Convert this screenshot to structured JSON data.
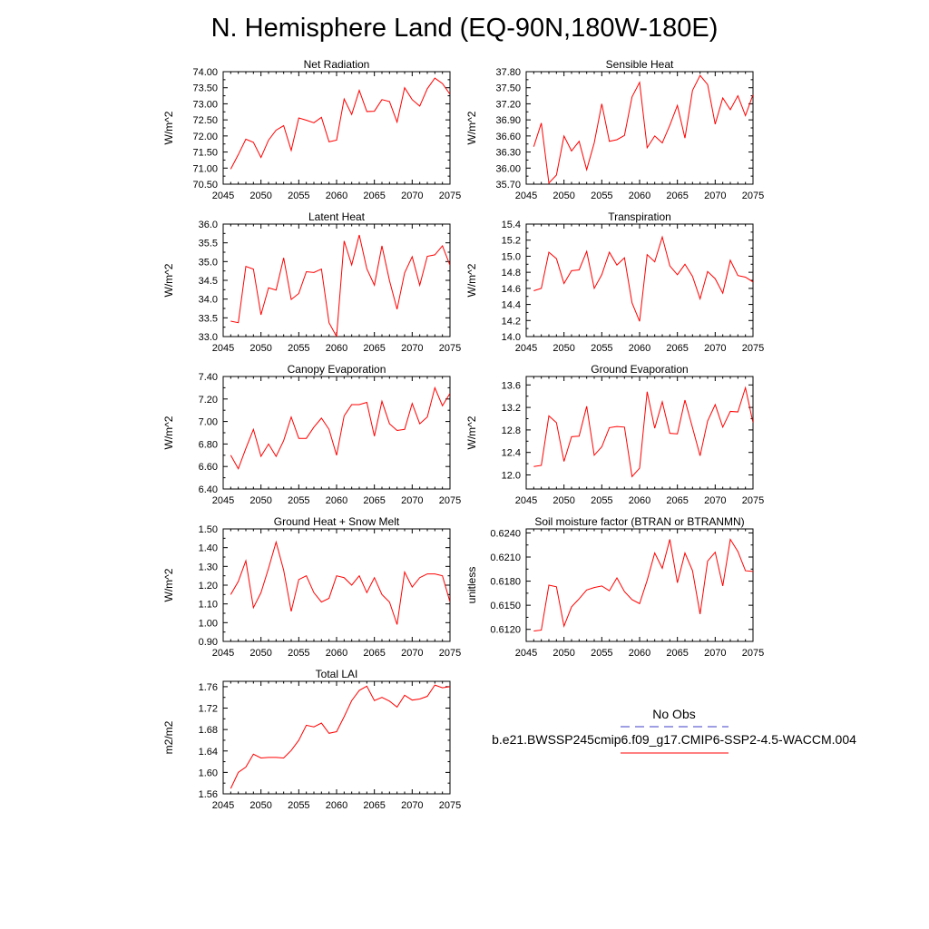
{
  "page": {
    "title": "N. Hemisphere Land (EQ-90N,180W-180E)",
    "legend": {
      "obs_label": "No Obs",
      "model_label": "b.e21.BWSSP245cmip6.f09_g17.CMIP6-SSP2-4.5-WACCM.004",
      "obs_color": "#3c3cc8",
      "model_color": "#ff0000"
    }
  },
  "colors": {
    "line": "#ff0000",
    "axis": "#000000",
    "background": "#ffffff"
  },
  "chart_data": [
    {
      "type": "line",
      "title": "Net Radiation",
      "ylabel": "W/m^2",
      "xlim": [
        2045,
        2075
      ],
      "ylim": [
        70.5,
        74.0
      ],
      "xticks": [
        2045,
        2050,
        2055,
        2060,
        2065,
        2070,
        2075
      ],
      "xtick_labels": [
        "2045",
        "2050",
        "2055",
        "2060",
        "2065",
        "2070",
        "2075"
      ],
      "yticks": [
        70.5,
        71.0,
        71.5,
        72.0,
        72.5,
        73.0,
        73.5,
        74.0
      ],
      "ytick_labels": [
        "70.50",
        "71.00",
        "71.50",
        "72.00",
        "72.50",
        "73.00",
        "73.50",
        "74.00"
      ],
      "x": [
        2046,
        2047,
        2048,
        2049,
        2050,
        2051,
        2052,
        2053,
        2054,
        2055,
        2056,
        2057,
        2058,
        2059,
        2060,
        2061,
        2062,
        2063,
        2064,
        2065,
        2066,
        2067,
        2068,
        2069,
        2070,
        2071,
        2072,
        2073,
        2074,
        2075
      ],
      "series": [
        {
          "values": [
            70.97,
            71.42,
            71.9,
            71.8,
            71.33,
            71.87,
            72.18,
            72.32,
            71.55,
            72.56,
            72.49,
            72.41,
            72.58,
            71.82,
            71.87,
            73.15,
            72.67,
            73.42,
            72.76,
            72.77,
            73.13,
            73.07,
            72.43,
            73.5,
            73.13,
            72.93,
            73.47,
            73.8,
            73.63,
            73.3
          ]
        }
      ]
    },
    {
      "type": "line",
      "title": "Sensible Heat",
      "ylabel": "W/m^2",
      "xlim": [
        2045,
        2075
      ],
      "ylim": [
        35.7,
        37.8
      ],
      "xticks": [
        2045,
        2050,
        2055,
        2060,
        2065,
        2070,
        2075
      ],
      "xtick_labels": [
        "2045",
        "2050",
        "2055",
        "2060",
        "2065",
        "2070",
        "2075"
      ],
      "yticks": [
        35.7,
        36.0,
        36.3,
        36.6,
        36.9,
        37.2,
        37.5,
        37.8
      ],
      "ytick_labels": [
        "35.70",
        "36.00",
        "36.30",
        "36.60",
        "36.90",
        "37.20",
        "37.50",
        "37.80"
      ],
      "x": [
        2046,
        2047,
        2048,
        2049,
        2050,
        2051,
        2052,
        2053,
        2054,
        2055,
        2056,
        2057,
        2058,
        2059,
        2060,
        2061,
        2062,
        2063,
        2064,
        2065,
        2066,
        2067,
        2068,
        2069,
        2070,
        2071,
        2072,
        2073,
        2074,
        2075
      ],
      "series": [
        {
          "values": [
            36.4,
            36.84,
            35.72,
            35.87,
            36.6,
            36.32,
            36.5,
            35.97,
            36.47,
            37.2,
            36.5,
            36.53,
            36.61,
            37.33,
            37.6,
            36.38,
            36.6,
            36.47,
            36.8,
            37.17,
            36.56,
            37.45,
            37.73,
            37.56,
            36.82,
            37.31,
            37.09,
            37.35,
            36.98,
            37.37
          ]
        }
      ]
    },
    {
      "type": "line",
      "title": "Latent Heat",
      "ylabel": "W/m^2",
      "xlim": [
        2045,
        2075
      ],
      "ylim": [
        33.0,
        36.0
      ],
      "xticks": [
        2045,
        2050,
        2055,
        2060,
        2065,
        2070,
        2075
      ],
      "xtick_labels": [
        "2045",
        "2050",
        "2055",
        "2060",
        "2065",
        "2070",
        "2075"
      ],
      "yticks": [
        33.0,
        33.5,
        34.0,
        34.5,
        35.0,
        35.5,
        36.0
      ],
      "ytick_labels": [
        "33.0",
        "33.5",
        "34.0",
        "34.5",
        "35.0",
        "35.5",
        "36.0"
      ],
      "x": [
        2046,
        2047,
        2048,
        2049,
        2050,
        2051,
        2052,
        2053,
        2054,
        2055,
        2056,
        2057,
        2058,
        2059,
        2060,
        2061,
        2062,
        2063,
        2064,
        2065,
        2066,
        2067,
        2068,
        2069,
        2070,
        2071,
        2072,
        2073,
        2074,
        2075
      ],
      "series": [
        {
          "values": [
            33.41,
            33.37,
            34.87,
            34.8,
            33.58,
            34.3,
            34.24,
            35.1,
            33.99,
            34.15,
            34.73,
            34.71,
            34.8,
            33.37,
            33.0,
            35.55,
            34.91,
            35.71,
            34.81,
            34.37,
            35.42,
            34.49,
            33.73,
            34.7,
            35.13,
            34.37,
            35.14,
            35.18,
            35.42,
            34.9
          ]
        }
      ]
    },
    {
      "type": "line",
      "title": "Transpiration",
      "ylabel": "W/m^2",
      "xlim": [
        2045,
        2075
      ],
      "ylim": [
        14.0,
        15.4
      ],
      "xticks": [
        2045,
        2050,
        2055,
        2060,
        2065,
        2070,
        2075
      ],
      "xtick_labels": [
        "2045",
        "2050",
        "2055",
        "2060",
        "2065",
        "2070",
        "2075"
      ],
      "yticks": [
        14.0,
        14.2,
        14.4,
        14.6,
        14.8,
        15.0,
        15.2,
        15.4
      ],
      "ytick_labels": [
        "14.0",
        "14.2",
        "14.4",
        "14.6",
        "14.8",
        "15.0",
        "15.2",
        "15.4"
      ],
      "x": [
        2046,
        2047,
        2048,
        2049,
        2050,
        2051,
        2052,
        2053,
        2054,
        2055,
        2056,
        2057,
        2058,
        2059,
        2060,
        2061,
        2062,
        2063,
        2064,
        2065,
        2066,
        2067,
        2068,
        2069,
        2070,
        2071,
        2072,
        2073,
        2074,
        2075
      ],
      "series": [
        {
          "values": [
            14.57,
            14.6,
            15.05,
            14.97,
            14.66,
            14.82,
            14.83,
            15.06,
            14.6,
            14.77,
            15.05,
            14.89,
            14.98,
            14.42,
            14.19,
            15.02,
            14.93,
            15.24,
            14.88,
            14.77,
            14.9,
            14.75,
            14.47,
            14.81,
            14.72,
            14.54,
            14.95,
            14.76,
            14.74,
            14.68
          ]
        }
      ]
    },
    {
      "type": "line",
      "title": "Canopy Evaporation",
      "ylabel": "W/m^2",
      "xlim": [
        2045,
        2075
      ],
      "ylim": [
        6.4,
        7.4
      ],
      "xticks": [
        2045,
        2050,
        2055,
        2060,
        2065,
        2070,
        2075
      ],
      "xtick_labels": [
        "2045",
        "2050",
        "2055",
        "2060",
        "2065",
        "2070",
        "2075"
      ],
      "yticks": [
        6.4,
        6.6,
        6.8,
        7.0,
        7.2,
        7.4
      ],
      "ytick_labels": [
        "6.40",
        "6.60",
        "6.80",
        "7.00",
        "7.20",
        "7.40"
      ],
      "x": [
        2046,
        2047,
        2048,
        2049,
        2050,
        2051,
        2052,
        2053,
        2054,
        2055,
        2056,
        2057,
        2058,
        2059,
        2060,
        2061,
        2062,
        2063,
        2064,
        2065,
        2066,
        2067,
        2068,
        2069,
        2070,
        2071,
        2072,
        2073,
        2074,
        2075
      ],
      "series": [
        {
          "values": [
            6.7,
            6.58,
            6.76,
            6.93,
            6.69,
            6.8,
            6.69,
            6.83,
            7.04,
            6.85,
            6.85,
            6.95,
            7.03,
            6.93,
            6.7,
            7.05,
            7.15,
            7.15,
            7.17,
            6.87,
            7.18,
            6.98,
            6.92,
            6.93,
            7.16,
            6.98,
            7.04,
            7.3,
            7.14,
            7.25
          ]
        }
      ]
    },
    {
      "type": "line",
      "title": "Ground Evaporation",
      "ylabel": "W/m^2",
      "xlim": [
        2045,
        2075
      ],
      "ylim": [
        11.75,
        13.75
      ],
      "xticks": [
        2045,
        2050,
        2055,
        2060,
        2065,
        2070,
        2075
      ],
      "xtick_labels": [
        "2045",
        "2050",
        "2055",
        "2060",
        "2065",
        "2070",
        "2075"
      ],
      "yticks": [
        12.0,
        12.4,
        12.8,
        13.2,
        13.6
      ],
      "ytick_labels": [
        "12.0",
        "12.4",
        "12.8",
        "13.2",
        "13.6"
      ],
      "x": [
        2046,
        2047,
        2048,
        2049,
        2050,
        2051,
        2052,
        2053,
        2054,
        2055,
        2056,
        2057,
        2058,
        2059,
        2060,
        2061,
        2062,
        2063,
        2064,
        2065,
        2066,
        2067,
        2068,
        2069,
        2070,
        2071,
        2072,
        2073,
        2074,
        2075
      ],
      "series": [
        {
          "values": [
            12.15,
            12.17,
            13.05,
            12.93,
            12.24,
            12.68,
            12.69,
            13.22,
            12.35,
            12.5,
            12.84,
            12.86,
            12.85,
            11.97,
            12.12,
            13.48,
            12.83,
            13.3,
            12.74,
            12.73,
            13.33,
            12.84,
            12.34,
            12.96,
            13.25,
            12.85,
            13.13,
            13.12,
            13.55,
            12.93
          ]
        }
      ]
    },
    {
      "type": "line",
      "title": "Ground Heat + Snow Melt",
      "ylabel": "W/m^2",
      "xlim": [
        2045,
        2075
      ],
      "ylim": [
        0.9,
        1.5
      ],
      "xticks": [
        2045,
        2050,
        2055,
        2060,
        2065,
        2070,
        2075
      ],
      "xtick_labels": [
        "2045",
        "2050",
        "2055",
        "2060",
        "2065",
        "2070",
        "2075"
      ],
      "yticks": [
        0.9,
        1.0,
        1.1,
        1.2,
        1.3,
        1.4,
        1.5
      ],
      "ytick_labels": [
        "0.90",
        "1.00",
        "1.10",
        "1.20",
        "1.30",
        "1.40",
        "1.50"
      ],
      "x": [
        2046,
        2047,
        2048,
        2049,
        2050,
        2051,
        2052,
        2053,
        2054,
        2055,
        2056,
        2057,
        2058,
        2059,
        2060,
        2061,
        2062,
        2063,
        2064,
        2065,
        2066,
        2067,
        2068,
        2069,
        2070,
        2071,
        2072,
        2073,
        2074,
        2075
      ],
      "series": [
        {
          "values": [
            1.15,
            1.22,
            1.33,
            1.08,
            1.16,
            1.29,
            1.43,
            1.28,
            1.06,
            1.23,
            1.25,
            1.16,
            1.11,
            1.13,
            1.25,
            1.24,
            1.2,
            1.25,
            1.16,
            1.24,
            1.15,
            1.11,
            0.99,
            1.27,
            1.19,
            1.24,
            1.26,
            1.26,
            1.25,
            1.11
          ]
        }
      ]
    },
    {
      "type": "line",
      "title": "Soil moisture factor (BTRAN or BTRANMN)",
      "ylabel": "unitless",
      "xlim": [
        2045,
        2075
      ],
      "ylim": [
        0.6105,
        0.6245
      ],
      "xticks": [
        2045,
        2050,
        2055,
        2060,
        2065,
        2070,
        2075
      ],
      "xtick_labels": [
        "2045",
        "2050",
        "2055",
        "2060",
        "2065",
        "2070",
        "2075"
      ],
      "yticks": [
        0.612,
        0.615,
        0.618,
        0.621,
        0.624
      ],
      "ytick_labels": [
        "0.6120",
        "0.6150",
        "0.6180",
        "0.6210",
        "0.6240"
      ],
      "x": [
        2046,
        2047,
        2048,
        2049,
        2050,
        2051,
        2052,
        2053,
        2054,
        2055,
        2056,
        2057,
        2058,
        2059,
        2060,
        2061,
        2062,
        2063,
        2064,
        2065,
        2066,
        2067,
        2068,
        2069,
        2070,
        2071,
        2072,
        2073,
        2074,
        2075
      ],
      "series": [
        {
          "values": [
            0.6118,
            0.6119,
            0.6175,
            0.6173,
            0.6124,
            0.6148,
            0.6158,
            0.6169,
            0.6172,
            0.6174,
            0.6168,
            0.6184,
            0.6167,
            0.6157,
            0.6152,
            0.6181,
            0.6215,
            0.6196,
            0.6232,
            0.6178,
            0.6215,
            0.6193,
            0.6139,
            0.6205,
            0.6216,
            0.6174,
            0.6232,
            0.6217,
            0.6193,
            0.6192
          ]
        }
      ]
    },
    {
      "type": "line",
      "title": "Total LAI",
      "ylabel": "m2/m2",
      "xlim": [
        2045,
        2075
      ],
      "ylim": [
        1.56,
        1.77
      ],
      "xticks": [
        2045,
        2050,
        2055,
        2060,
        2065,
        2070,
        2075
      ],
      "xtick_labels": [
        "2045",
        "2050",
        "2055",
        "2060",
        "2065",
        "2070",
        "2075"
      ],
      "yticks": [
        1.56,
        1.6,
        1.64,
        1.68,
        1.72,
        1.76
      ],
      "ytick_labels": [
        "1.56",
        "1.60",
        "1.64",
        "1.68",
        "1.72",
        "1.76"
      ],
      "x": [
        2046,
        2047,
        2048,
        2049,
        2050,
        2051,
        2052,
        2053,
        2054,
        2055,
        2056,
        2057,
        2058,
        2059,
        2060,
        2061,
        2062,
        2063,
        2064,
        2065,
        2066,
        2067,
        2068,
        2069,
        2070,
        2071,
        2072,
        2073,
        2074,
        2075
      ],
      "series": [
        {
          "values": [
            1.57,
            1.6,
            1.61,
            1.634,
            1.627,
            1.628,
            1.628,
            1.627,
            1.641,
            1.66,
            1.688,
            1.685,
            1.692,
            1.673,
            1.676,
            1.704,
            1.734,
            1.753,
            1.761,
            1.734,
            1.74,
            1.733,
            1.722,
            1.744,
            1.735,
            1.737,
            1.742,
            1.763,
            1.758,
            1.76
          ]
        }
      ]
    }
  ]
}
